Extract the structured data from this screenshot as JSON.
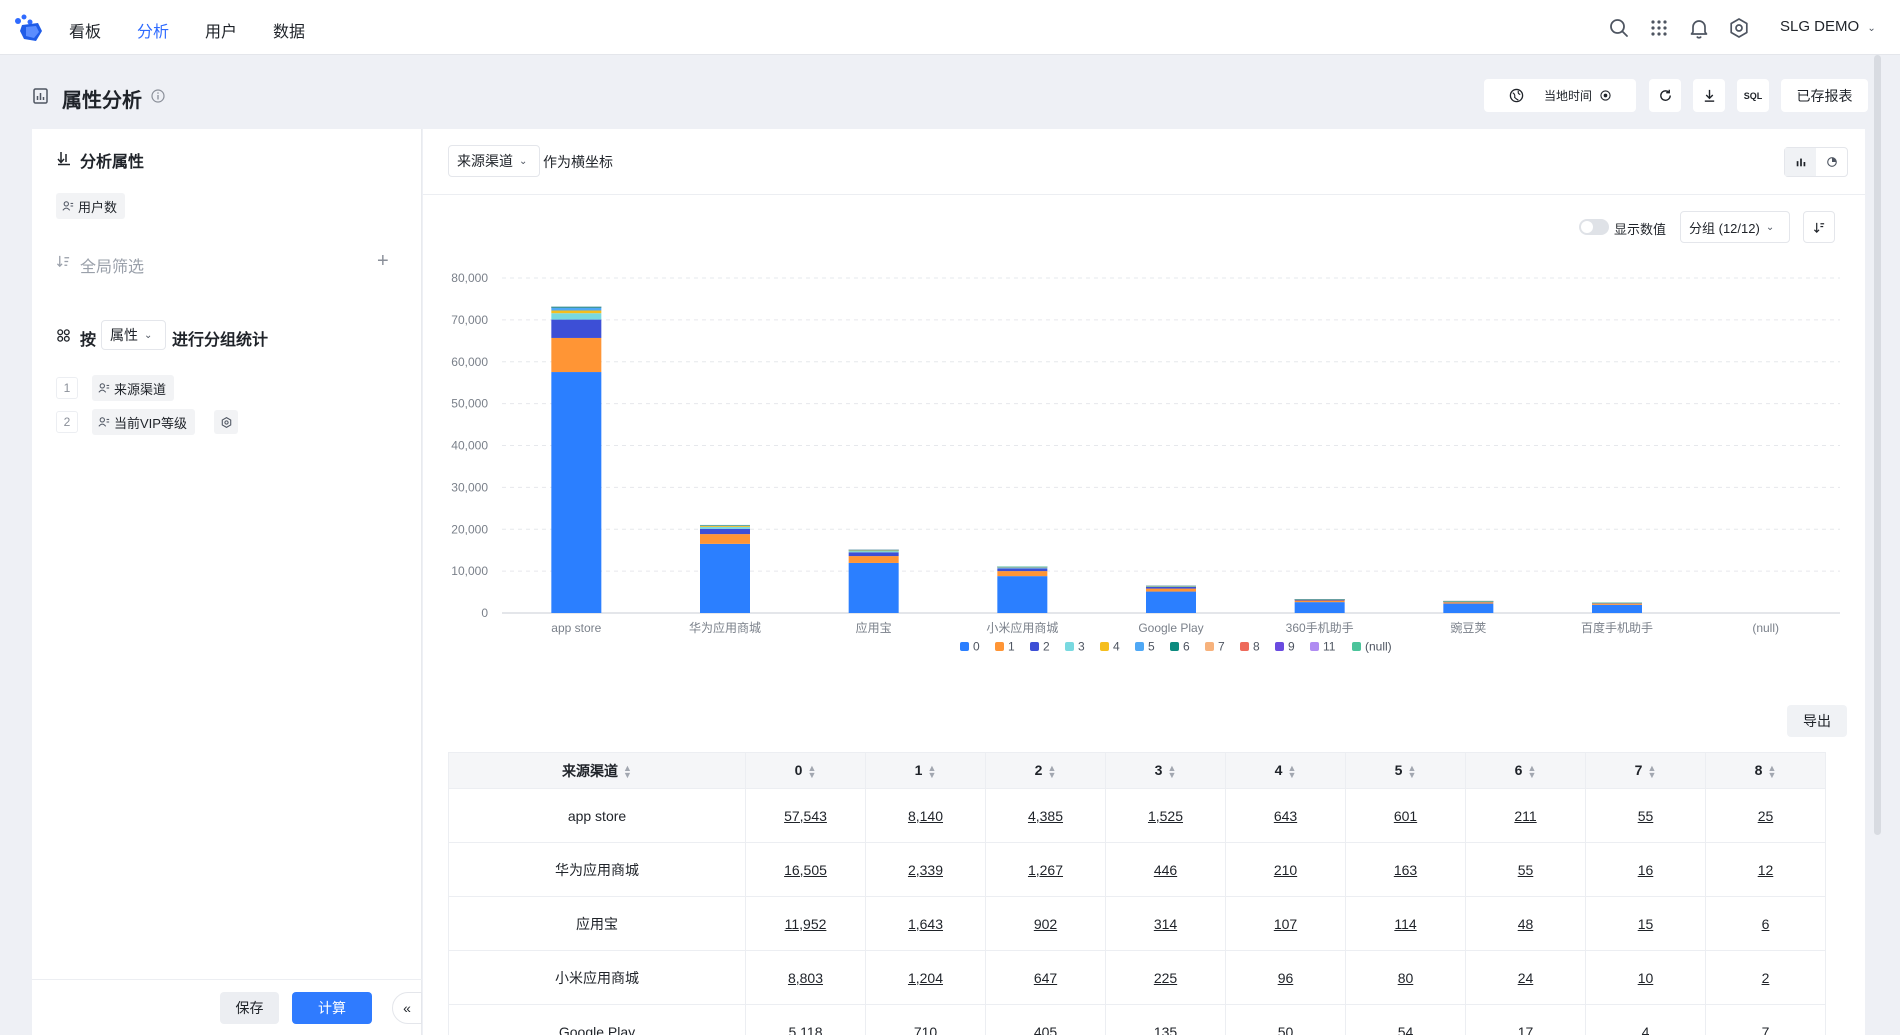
{
  "nav": {
    "items": [
      {
        "label": "看板",
        "active": false
      },
      {
        "label": "分析",
        "active": true
      },
      {
        "label": "用户",
        "active": false
      },
      {
        "label": "数据",
        "active": false
      }
    ],
    "account": "SLG DEMO",
    "icons": [
      "search-icon",
      "apps-grid-icon",
      "bell-icon",
      "settings-icon"
    ]
  },
  "header": {
    "title": "属性分析",
    "timezone_label": "当地时间",
    "saved_reports_label": "已存报表",
    "sql_label": "SQL"
  },
  "left": {
    "metric_section_title": "分析属性",
    "metric_chip": "用户数",
    "filter_label": "全局筛选",
    "group_prefix": "按",
    "group_select": "属性",
    "group_suffix": "进行分组统计",
    "groups": [
      {
        "index": "1",
        "label": "来源渠道"
      },
      {
        "index": "2",
        "label": "当前VIP等级"
      }
    ],
    "save_label": "保存",
    "calc_label": "计算",
    "collapse_label": "«"
  },
  "main": {
    "axis_select": "来源渠道",
    "axis_suffix": "作为横坐标",
    "show_values_label": "显示数值",
    "group_select": "分组 (12/12)",
    "export_label": "导出"
  },
  "colors": {
    "accent": "#2f7bff",
    "series": [
      "#2b7fff",
      "#ff9535",
      "#3d4fd6",
      "#79d9e0",
      "#f5be1e",
      "#4fa8f5",
      "#0b8a7e",
      "#f7b27c",
      "#ee6a5b",
      "#6a4be0",
      "#b08cf2",
      "#4bc49b"
    ]
  },
  "chart_data": {
    "type": "bar",
    "stacked": true,
    "categories": [
      "app store",
      "华为应用商城",
      "应用宝",
      "小米应用商城",
      "Google Play",
      "360手机助手",
      "豌豆荚",
      "百度手机助手",
      "(null)"
    ],
    "series": [
      {
        "name": "0",
        "values": [
          57543,
          16505,
          11952,
          8803,
          5118,
          2600,
          2250,
          1950,
          0
        ]
      },
      {
        "name": "1",
        "values": [
          8140,
          2339,
          1643,
          1204,
          710,
          380,
          330,
          290,
          0
        ]
      },
      {
        "name": "2",
        "values": [
          4385,
          1267,
          902,
          647,
          405,
          200,
          180,
          160,
          0
        ]
      },
      {
        "name": "3",
        "values": [
          1525,
          446,
          314,
          225,
          135,
          70,
          60,
          50,
          0
        ]
      },
      {
        "name": "4",
        "values": [
          643,
          210,
          107,
          96,
          50,
          30,
          25,
          20,
          0
        ]
      },
      {
        "name": "5",
        "values": [
          601,
          163,
          114,
          80,
          54,
          25,
          20,
          18,
          0
        ]
      },
      {
        "name": "6",
        "values": [
          211,
          55,
          48,
          24,
          17,
          8,
          7,
          6,
          0
        ]
      },
      {
        "name": "7",
        "values": [
          55,
          16,
          15,
          10,
          4,
          2,
          2,
          2,
          0
        ]
      },
      {
        "name": "8",
        "values": [
          25,
          12,
          6,
          2,
          7,
          1,
          1,
          1,
          0
        ]
      },
      {
        "name": "9",
        "values": [
          10,
          4,
          3,
          2,
          2,
          1,
          1,
          1,
          0
        ]
      },
      {
        "name": "11",
        "values": [
          5,
          2,
          1,
          1,
          1,
          0,
          0,
          0,
          0
        ]
      },
      {
        "name": "(null)",
        "values": [
          10,
          4,
          3,
          2,
          2,
          1,
          1,
          1,
          0
        ]
      }
    ],
    "yticks": [
      "0",
      "10,000",
      "20,000",
      "30,000",
      "40,000",
      "50,000",
      "60,000",
      "70,000",
      "80,000"
    ],
    "ylim": [
      0,
      80000
    ],
    "grid": true,
    "legend_position": "bottom"
  },
  "table": {
    "columns": [
      "来源渠道",
      "0",
      "1",
      "2",
      "3",
      "4",
      "5",
      "6",
      "7",
      "8"
    ],
    "rows": [
      [
        "app store",
        "57,543",
        "8,140",
        "4,385",
        "1,525",
        "643",
        "601",
        "211",
        "55",
        "25"
      ],
      [
        "华为应用商城",
        "16,505",
        "2,339",
        "1,267",
        "446",
        "210",
        "163",
        "55",
        "16",
        "12"
      ],
      [
        "应用宝",
        "11,952",
        "1,643",
        "902",
        "314",
        "107",
        "114",
        "48",
        "15",
        "6"
      ],
      [
        "小米应用商城",
        "8,803",
        "1,204",
        "647",
        "225",
        "96",
        "80",
        "24",
        "10",
        "2"
      ],
      [
        "Google Play",
        "5,118",
        "710",
        "405",
        "135",
        "50",
        "54",
        "17",
        "4",
        "7"
      ]
    ]
  }
}
